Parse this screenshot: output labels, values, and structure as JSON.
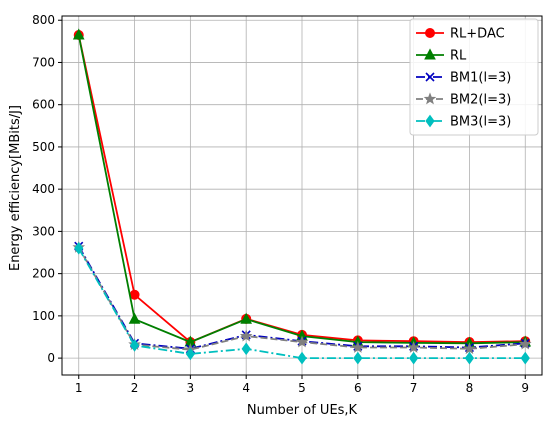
{
  "chart_data": {
    "type": "line",
    "title": "",
    "xlabel": "Number of UEs,K",
    "ylabel": "Energy efficiency[MBits/J]",
    "x": [
      1,
      2,
      3,
      4,
      5,
      6,
      7,
      8,
      9
    ],
    "xlim": [
      0.7,
      9.3
    ],
    "ylim": [
      -40,
      810
    ],
    "xticks": [
      1,
      2,
      3,
      4,
      5,
      6,
      7,
      8,
      9
    ],
    "yticks": [
      0,
      100,
      200,
      300,
      400,
      500,
      600,
      700,
      800
    ],
    "grid": true,
    "legend_position": "top-right",
    "series": [
      {
        "name": "RL+DAC",
        "color": "#ff0000",
        "marker": "circle",
        "dash": "solid",
        "values": [
          765,
          150,
          38,
          93,
          55,
          42,
          40,
          38,
          40
        ]
      },
      {
        "name": "RL",
        "color": "#007f00",
        "marker": "triangle",
        "dash": "solid",
        "values": [
          765,
          92,
          38,
          92,
          52,
          38,
          36,
          35,
          38
        ]
      },
      {
        "name": "BM1(l=3)",
        "color": "#0000bf",
        "marker": "x",
        "dash": "dashdot",
        "values": [
          265,
          35,
          22,
          55,
          40,
          28,
          28,
          25,
          35
        ]
      },
      {
        "name": "BM2(l=3)",
        "color": "#808080",
        "marker": "star",
        "dash": "dashed",
        "values": [
          262,
          32,
          20,
          52,
          38,
          25,
          25,
          22,
          33
        ]
      },
      {
        "name": "BM3(l=3)",
        "color": "#00bfbf",
        "marker": "diamond",
        "dash": "dashdot",
        "values": [
          260,
          30,
          10,
          22,
          0,
          0,
          0,
          0,
          0
        ]
      }
    ]
  }
}
